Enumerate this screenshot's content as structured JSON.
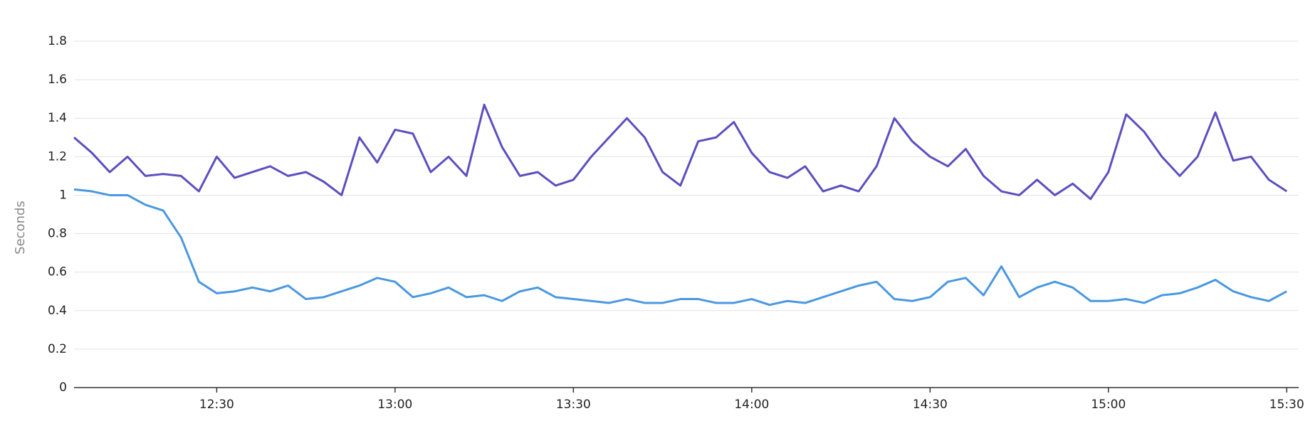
{
  "chart_data": {
    "type": "line",
    "y_label": "Seconds",
    "x": [
      "12:06",
      "12:09",
      "12:12",
      "12:15",
      "12:18",
      "12:21",
      "12:24",
      "12:27",
      "12:30",
      "12:33",
      "12:36",
      "12:39",
      "12:42",
      "12:45",
      "12:48",
      "12:51",
      "12:54",
      "12:57",
      "13:00",
      "13:03",
      "13:06",
      "13:09",
      "13:12",
      "13:15",
      "13:18",
      "13:21",
      "13:24",
      "13:27",
      "13:30",
      "13:33",
      "13:36",
      "13:39",
      "13:42",
      "13:45",
      "13:48",
      "13:51",
      "13:54",
      "13:57",
      "14:00",
      "14:03",
      "14:06",
      "14:09",
      "14:12",
      "14:15",
      "14:18",
      "14:21",
      "14:24",
      "14:27",
      "14:30",
      "14:33",
      "14:36",
      "14:39",
      "14:42",
      "14:45",
      "14:48",
      "14:51",
      "14:54",
      "14:57",
      "15:00",
      "15:03",
      "15:06",
      "15:09",
      "15:12",
      "15:15",
      "15:18",
      "15:21",
      "15:24",
      "15:27",
      "15:30"
    ],
    "series": [
      {
        "color": "#5b4fc0",
        "values": [
          1.3,
          1.22,
          1.12,
          1.2,
          1.1,
          1.11,
          1.1,
          1.02,
          1.2,
          1.09,
          1.12,
          1.15,
          1.1,
          1.12,
          1.07,
          1.0,
          1.3,
          1.17,
          1.34,
          1.32,
          1.12,
          1.2,
          1.1,
          1.47,
          1.25,
          1.1,
          1.12,
          1.05,
          1.08,
          1.2,
          1.3,
          1.4,
          1.3,
          1.12,
          1.05,
          1.28,
          1.3,
          1.38,
          1.22,
          1.12,
          1.09,
          1.15,
          1.02,
          1.05,
          1.02,
          1.15,
          1.4,
          1.28,
          1.2,
          1.15,
          1.24,
          1.1,
          1.02,
          1.0,
          1.08,
          1.0,
          1.06,
          0.98,
          1.12,
          1.42,
          1.33,
          1.2,
          1.1,
          1.2,
          1.43,
          1.18,
          1.2,
          1.08,
          1.02
        ]
      },
      {
        "color": "#4a98e0",
        "values": [
          1.03,
          1.02,
          1.0,
          1.0,
          0.95,
          0.92,
          0.78,
          0.55,
          0.49,
          0.5,
          0.52,
          0.5,
          0.53,
          0.46,
          0.47,
          0.5,
          0.53,
          0.57,
          0.55,
          0.47,
          0.49,
          0.52,
          0.47,
          0.48,
          0.45,
          0.5,
          0.52,
          0.47,
          0.46,
          0.45,
          0.44,
          0.46,
          0.44,
          0.44,
          0.46,
          0.46,
          0.44,
          0.44,
          0.46,
          0.43,
          0.45,
          0.44,
          0.47,
          0.5,
          0.53,
          0.55,
          0.46,
          0.45,
          0.47,
          0.55,
          0.57,
          0.48,
          0.63,
          0.47,
          0.52,
          0.55,
          0.52,
          0.45,
          0.45,
          0.46,
          0.44,
          0.48,
          0.49,
          0.52,
          0.56,
          0.5,
          0.47,
          0.45,
          0.5
        ]
      }
    ],
    "xlim": [
      "12:06",
      "15:32"
    ],
    "xticks": [
      "12:30",
      "13:00",
      "13:30",
      "14:00",
      "14:30",
      "15:00",
      "15:30"
    ],
    "ylim": [
      0,
      1.8
    ],
    "yticks": [
      0,
      0.2,
      0.4,
      0.6,
      0.8,
      1,
      1.2,
      1.4,
      1.6,
      1.8
    ],
    "grid": true
  }
}
